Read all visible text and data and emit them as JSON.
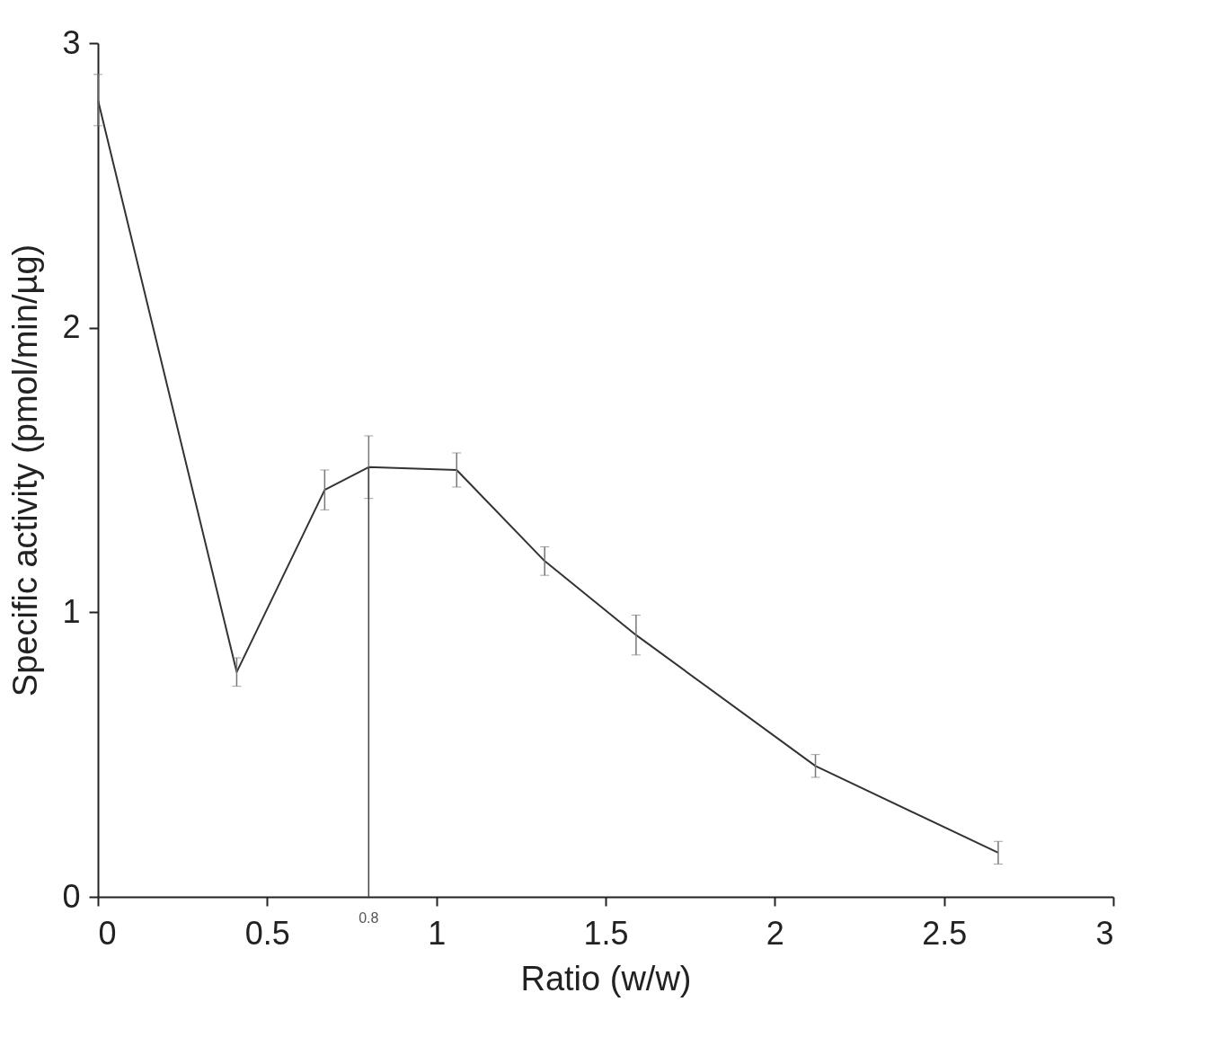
{
  "chart_data": {
    "type": "line",
    "xlabel": "Ratio (w/w)",
    "ylabel": "Specific activity (pmol/min/µg)",
    "x": [
      0,
      0.41,
      0.67,
      0.8,
      1.06,
      1.32,
      1.59,
      2.12,
      2.66
    ],
    "series": [
      {
        "color": "#333333",
        "values": [
          2.8,
          0.79,
          1.43,
          1.51,
          1.5,
          1.18,
          0.92,
          0.46,
          0.155
        ],
        "errors": [
          0.09,
          0.05,
          0.07,
          0.11,
          0.06,
          0.05,
          0.07,
          0.04,
          0.04
        ]
      }
    ],
    "xlim": [
      0,
      3
    ],
    "xticks": [
      0,
      0.5,
      1,
      1.5,
      2,
      2.5,
      3
    ],
    "ylim": [
      0,
      3
    ],
    "yticks": [
      0,
      1,
      2,
      3
    ],
    "ref_lines": [
      {
        "axis": "x",
        "value": 0.8,
        "label": "0.8"
      }
    ],
    "grid": false,
    "marker": "none",
    "line_style": "solid"
  }
}
